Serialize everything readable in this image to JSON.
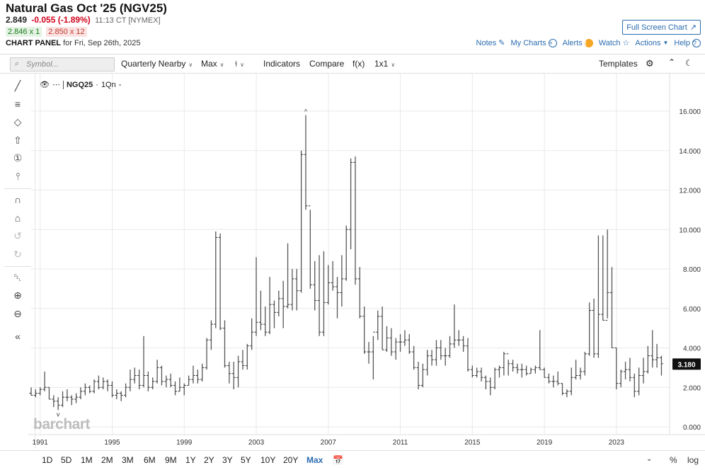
{
  "header": {
    "title": "Natural Gas Oct '25 (NGV25)",
    "price": "2.849",
    "change": "-0.055 (-1.89%)",
    "time": "11:13 CT [NYMEX]",
    "bid": "2.846 x 1",
    "ask": "2.850 x 12",
    "panel_label": "CHART PANEL",
    "panel_date": "for Fri, Sep 26th, 2025",
    "full_screen": "Full Screen Chart"
  },
  "toplinks": {
    "notes": "Notes",
    "mycharts": "My Charts",
    "alerts": "Alerts",
    "watch": "Watch",
    "actions": "Actions",
    "help": "Help"
  },
  "toolbar": {
    "symbol_placeholder": "Symbol...",
    "aggregation": "Quarterly Nearby",
    "range": "Max",
    "indicators": "Indicators",
    "compare": "Compare",
    "fx": "f(x)",
    "layout": "1x1",
    "templates": "Templates"
  },
  "legend": {
    "symbol": "NGQ25",
    "period": "1Qn"
  },
  "watermark": "barchart",
  "periods": [
    "1D",
    "5D",
    "1M",
    "2M",
    "3M",
    "6M",
    "9M",
    "1Y",
    "2Y",
    "3Y",
    "5Y",
    "10Y",
    "20Y",
    "Max"
  ],
  "active_period": "Max",
  "bottom_right": {
    "pct": "%",
    "log": "log"
  },
  "chart_data": {
    "type": "ohlc",
    "x_ticks": [
      "1991",
      "1995",
      "1999",
      "2003",
      "2007",
      "2011",
      "2015",
      "2019",
      "2023"
    ],
    "y_ticks": [
      "0.000",
      "2.000",
      "4.000",
      "6.000",
      "8.000",
      "10.000",
      "12.000",
      "14.000",
      "16.000"
    ],
    "ylim": [
      0,
      17.3
    ],
    "xlim": [
      1990.5,
      2025.9
    ],
    "last_price": "3.180",
    "last_value": 3.18,
    "grid": true,
    "bars": [
      [
        1990.5,
        1.7,
        2.0,
        1.6,
        1.6
      ],
      [
        1990.75,
        1.6,
        1.9,
        1.5,
        1.7
      ],
      [
        1991.0,
        1.7,
        2.0,
        1.6,
        1.9
      ],
      [
        1991.25,
        1.9,
        2.8,
        1.8,
        2.0
      ],
      [
        1991.5,
        2.0,
        2.0,
        1.4,
        1.4
      ],
      [
        1991.75,
        1.4,
        1.6,
        1.0,
        1.3
      ],
      [
        1992.0,
        1.3,
        1.5,
        0.85,
        1.1
      ],
      [
        1992.25,
        1.1,
        1.8,
        1.0,
        1.5
      ],
      [
        1992.5,
        1.5,
        1.9,
        1.3,
        1.5
      ],
      [
        1992.75,
        1.5,
        1.6,
        1.1,
        1.4
      ],
      [
        1993.0,
        1.4,
        1.7,
        1.2,
        1.5
      ],
      [
        1993.25,
        1.5,
        2.0,
        1.4,
        1.8
      ],
      [
        1993.5,
        1.8,
        2.2,
        1.6,
        2.0
      ],
      [
        1993.75,
        2.0,
        2.1,
        1.7,
        1.8
      ],
      [
        1994.0,
        1.8,
        2.4,
        1.7,
        2.3
      ],
      [
        1994.25,
        2.3,
        2.6,
        1.9,
        2.0
      ],
      [
        1994.5,
        2.0,
        2.5,
        1.9,
        2.3
      ],
      [
        1994.75,
        2.3,
        2.4,
        1.8,
        2.1
      ],
      [
        1995.0,
        2.1,
        2.3,
        1.5,
        1.6
      ],
      [
        1995.25,
        1.6,
        1.9,
        1.4,
        1.7
      ],
      [
        1995.5,
        1.7,
        1.8,
        1.3,
        1.6
      ],
      [
        1995.75,
        1.6,
        2.2,
        1.5,
        2.0
      ],
      [
        1996.0,
        2.0,
        2.9,
        1.8,
        2.4
      ],
      [
        1996.25,
        2.4,
        3.0,
        2.2,
        2.6
      ],
      [
        1996.5,
        2.6,
        2.9,
        1.9,
        2.1
      ],
      [
        1996.75,
        2.1,
        4.6,
        2.0,
        2.6
      ],
      [
        1997.0,
        2.6,
        2.8,
        1.8,
        2.0
      ],
      [
        1997.25,
        2.0,
        2.5,
        1.9,
        2.3
      ],
      [
        1997.5,
        2.3,
        3.4,
        2.2,
        3.0
      ],
      [
        1997.75,
        3.0,
        3.1,
        2.1,
        2.3
      ],
      [
        1998.0,
        2.3,
        2.6,
        2.0,
        2.4
      ],
      [
        1998.25,
        2.4,
        2.7,
        2.0,
        2.1
      ],
      [
        1998.5,
        2.1,
        2.3,
        1.6,
        1.8
      ],
      [
        1998.75,
        1.8,
        2.5,
        1.8,
        2.0
      ],
      [
        1999.0,
        2.0,
        2.2,
        1.6,
        2.1
      ],
      [
        1999.25,
        2.1,
        2.6,
        2.1,
        2.4
      ],
      [
        1999.5,
        2.4,
        3.1,
        2.2,
        2.6
      ],
      [
        1999.75,
        2.6,
        2.9,
        2.2,
        2.4
      ],
      [
        2000.0,
        2.4,
        3.2,
        2.3,
        3.0
      ],
      [
        2000.25,
        3.0,
        4.5,
        2.9,
        4.4
      ],
      [
        2000.5,
        4.4,
        5.4,
        3.9,
        5.2
      ],
      [
        2000.75,
        5.2,
        9.9,
        5.0,
        9.6
      ],
      [
        2001.0,
        9.6,
        9.8,
        4.9,
        5.0
      ],
      [
        2001.25,
        5.0,
        5.4,
        3.0,
        3.1
      ],
      [
        2001.5,
        3.1,
        3.3,
        2.2,
        2.7
      ],
      [
        2001.75,
        2.7,
        3.3,
        1.9,
        2.5
      ],
      [
        2002.0,
        2.5,
        3.6,
        2.0,
        3.3
      ],
      [
        2002.25,
        3.3,
        3.9,
        2.9,
        3.1
      ],
      [
        2002.5,
        3.1,
        4.2,
        2.9,
        4.1
      ],
      [
        2002.75,
        4.1,
        5.5,
        3.9,
        4.8
      ],
      [
        2003.0,
        4.8,
        8.6,
        4.6,
        5.3
      ],
      [
        2003.25,
        5.3,
        6.9,
        4.9,
        5.2
      ],
      [
        2003.5,
        5.2,
        6.1,
        4.6,
        4.8
      ],
      [
        2003.75,
        4.8,
        7.6,
        4.7,
        6.2
      ],
      [
        2004.0,
        6.2,
        6.4,
        5.0,
        5.8
      ],
      [
        2004.25,
        5.8,
        6.9,
        5.6,
        6.5
      ],
      [
        2004.5,
        6.5,
        7.4,
        5.0,
        6.1
      ],
      [
        2004.75,
        6.1,
        9.3,
        6.0,
        6.2
      ],
      [
        2005.0,
        6.2,
        8.0,
        5.9,
        7.5
      ],
      [
        2005.25,
        7.5,
        8.0,
        5.9,
        6.9
      ],
      [
        2005.5,
        6.9,
        14.0,
        6.8,
        13.8
      ],
      [
        2005.75,
        13.8,
        15.8,
        11.0,
        11.2
      ],
      [
        2006.0,
        11.2,
        11.0,
        7.0,
        7.2
      ],
      [
        2006.25,
        7.2,
        8.4,
        5.9,
        6.4
      ],
      [
        2006.5,
        6.4,
        8.7,
        4.6,
        4.8
      ],
      [
        2006.75,
        4.8,
        8.9,
        4.6,
        6.3
      ],
      [
        2007.0,
        6.3,
        8.2,
        6.2,
        7.3
      ],
      [
        2007.25,
        7.3,
        8.4,
        6.9,
        7.1
      ],
      [
        2007.5,
        7.1,
        7.6,
        5.5,
        6.8
      ],
      [
        2007.75,
        6.8,
        8.7,
        6.1,
        7.5
      ],
      [
        2008.0,
        7.5,
        10.2,
        7.4,
        10.0
      ],
      [
        2008.25,
        10.0,
        13.6,
        9.0,
        13.4
      ],
      [
        2008.5,
        13.4,
        13.7,
        7.2,
        7.5
      ],
      [
        2008.75,
        7.5,
        8.1,
        5.5,
        5.6
      ],
      [
        2009.0,
        5.6,
        6.1,
        3.7,
        3.8
      ],
      [
        2009.25,
        3.8,
        4.3,
        3.2,
        3.8
      ],
      [
        2009.5,
        3.8,
        4.6,
        2.4,
        4.8
      ],
      [
        2009.75,
        4.8,
        5.9,
        4.4,
        5.6
      ],
      [
        2010.0,
        5.6,
        6.1,
        3.9,
        3.9
      ],
      [
        2010.25,
        3.9,
        5.1,
        3.8,
        4.5
      ],
      [
        2010.5,
        4.5,
        5.0,
        3.6,
        3.8
      ],
      [
        2010.75,
        3.8,
        4.5,
        3.4,
        4.3
      ],
      [
        2011.0,
        4.3,
        4.7,
        3.8,
        4.3
      ],
      [
        2011.25,
        4.3,
        4.9,
        4.1,
        4.4
      ],
      [
        2011.5,
        4.4,
        4.7,
        3.7,
        3.8
      ],
      [
        2011.75,
        3.8,
        4.1,
        2.9,
        3.0
      ],
      [
        2012.0,
        3.0,
        3.3,
        1.9,
        2.1
      ],
      [
        2012.25,
        2.1,
        3.2,
        2.0,
        2.9
      ],
      [
        2012.5,
        2.9,
        3.9,
        2.6,
        3.6
      ],
      [
        2012.75,
        3.6,
        3.9,
        3.1,
        3.4
      ],
      [
        2013.0,
        3.4,
        4.4,
        3.1,
        4.0
      ],
      [
        2013.25,
        4.0,
        4.4,
        3.4,
        3.6
      ],
      [
        2013.5,
        3.6,
        4.0,
        3.1,
        3.6
      ],
      [
        2013.75,
        3.6,
        4.6,
        3.5,
        4.2
      ],
      [
        2014.0,
        4.2,
        6.2,
        4.0,
        4.4
      ],
      [
        2014.25,
        4.4,
        4.9,
        4.1,
        4.4
      ],
      [
        2014.5,
        4.4,
        4.6,
        3.8,
        4.1
      ],
      [
        2014.75,
        4.1,
        4.5,
        2.8,
        2.9
      ],
      [
        2015.0,
        2.9,
        3.1,
        2.5,
        2.6
      ],
      [
        2015.25,
        2.6,
        3.0,
        2.5,
        2.8
      ],
      [
        2015.5,
        2.8,
        3.0,
        2.3,
        2.5
      ],
      [
        2015.75,
        2.5,
        2.6,
        1.9,
        2.3
      ],
      [
        2016.0,
        2.3,
        2.5,
        1.6,
        2.0
      ],
      [
        2016.25,
        2.0,
        3.0,
        1.9,
        2.9
      ],
      [
        2016.5,
        2.9,
        3.1,
        2.5,
        3.0
      ],
      [
        2016.75,
        3.0,
        3.8,
        2.6,
        3.7
      ],
      [
        2017.0,
        3.7,
        3.4,
        2.6,
        3.2
      ],
      [
        2017.25,
        3.2,
        3.4,
        2.8,
        3.0
      ],
      [
        2017.5,
        3.0,
        3.2,
        2.7,
        2.9
      ],
      [
        2017.75,
        2.9,
        3.2,
        2.5,
        2.9
      ],
      [
        2018.0,
        2.9,
        3.1,
        2.6,
        2.7
      ],
      [
        2018.25,
        2.7,
        3.0,
        2.7,
        2.9
      ],
      [
        2018.5,
        2.9,
        3.1,
        2.7,
        3.0
      ],
      [
        2018.75,
        3.0,
        4.9,
        2.9,
        2.9
      ],
      [
        2019.0,
        2.9,
        3.0,
        2.5,
        2.5
      ],
      [
        2019.25,
        2.5,
        2.7,
        2.2,
        2.3
      ],
      [
        2019.5,
        2.3,
        2.6,
        2.0,
        2.3
      ],
      [
        2019.75,
        2.3,
        2.8,
        2.1,
        2.2
      ],
      [
        2020.0,
        2.2,
        2.2,
        1.6,
        1.7
      ],
      [
        2020.25,
        1.7,
        1.9,
        1.5,
        1.8
      ],
      [
        2020.5,
        1.8,
        3.0,
        1.6,
        2.5
      ],
      [
        2020.75,
        2.5,
        3.4,
        2.4,
        2.6
      ],
      [
        2021.0,
        2.6,
        3.0,
        2.4,
        2.8
      ],
      [
        2021.25,
        2.8,
        3.8,
        2.6,
        3.7
      ],
      [
        2021.5,
        3.7,
        6.3,
        3.6,
        5.9
      ],
      [
        2021.75,
        5.9,
        6.5,
        3.5,
        3.7
      ],
      [
        2022.0,
        3.7,
        9.7,
        3.5,
        5.7
      ],
      [
        2022.25,
        5.7,
        9.7,
        5.4,
        5.4
      ],
      [
        2022.5,
        5.4,
        10.0,
        5.5,
        6.8
      ],
      [
        2022.75,
        6.8,
        8.1,
        4.0,
        4.0
      ],
      [
        2023.0,
        4.0,
        4.0,
        1.9,
        2.2
      ],
      [
        2023.25,
        2.2,
        2.9,
        2.0,
        2.8
      ],
      [
        2023.5,
        2.8,
        3.3,
        2.4,
        2.9
      ],
      [
        2023.75,
        2.9,
        3.5,
        2.3,
        2.5
      ],
      [
        2024.0,
        2.5,
        2.7,
        1.5,
        1.8
      ],
      [
        2024.25,
        1.8,
        3.0,
        1.6,
        2.6
      ],
      [
        2024.5,
        2.6,
        3.5,
        2.2,
        2.8
      ],
      [
        2024.75,
        2.8,
        4.1,
        2.7,
        3.6
      ],
      [
        2025.0,
        3.6,
        4.9,
        3.0,
        3.4
      ],
      [
        2025.25,
        3.4,
        4.2,
        3.0,
        3.5
      ],
      [
        2025.5,
        3.5,
        3.6,
        2.6,
        3.2
      ]
    ]
  }
}
